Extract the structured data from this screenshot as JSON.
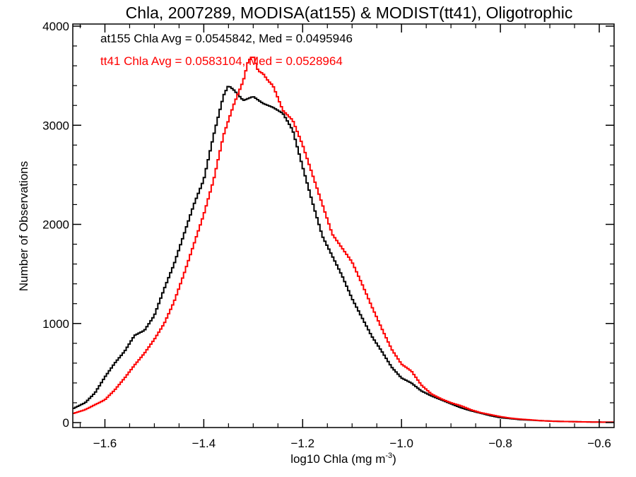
{
  "chart_data": {
    "type": "line",
    "title": "Chla, 2007289, MODISA(at155) & MODIST(tt41), Oligotrophic",
    "xlabel_main": "log10 Chla (mg m",
    "xlabel_sup": "-3",
    "xlabel_close": ")",
    "ylabel": "Number of Observations",
    "xlim": [
      -1.665,
      -0.57
    ],
    "ylim": [
      0,
      4000
    ],
    "xticks": [
      -1.6,
      -1.4,
      -1.2,
      -1.0,
      -0.8,
      -0.6
    ],
    "xtick_labels": [
      "−1.6",
      "−1.4",
      "−1.2",
      "−1.0",
      "−0.8",
      "−0.6"
    ],
    "yticks": [
      0,
      1000,
      2000,
      3000,
      4000
    ],
    "ytick_labels": [
      "0",
      "1000",
      "2000",
      "3000",
      "4000"
    ],
    "grid": false,
    "step_style": "histogram-step",
    "annotations": [
      {
        "text": "at155 Chla Avg = 0.0545842, Med = 0.0495946",
        "color": "#000000"
      },
      {
        "text": "tt41 Chla Avg = 0.0583104, Med = 0.0528964",
        "color": "#ff0000"
      }
    ],
    "series": [
      {
        "color": "#000000",
        "points": [
          [
            -1.665,
            140
          ],
          [
            -1.64,
            200
          ],
          [
            -1.62,
            300
          ],
          [
            -1.6,
            460
          ],
          [
            -1.58,
            600
          ],
          [
            -1.56,
            720
          ],
          [
            -1.54,
            880
          ],
          [
            -1.52,
            930
          ],
          [
            -1.5,
            1080
          ],
          [
            -1.48,
            1350
          ],
          [
            -1.46,
            1600
          ],
          [
            -1.44,
            1900
          ],
          [
            -1.42,
            2200
          ],
          [
            -1.4,
            2450
          ],
          [
            -1.38,
            2900
          ],
          [
            -1.36,
            3300
          ],
          [
            -1.35,
            3400
          ],
          [
            -1.34,
            3360
          ],
          [
            -1.32,
            3250
          ],
          [
            -1.3,
            3290
          ],
          [
            -1.28,
            3220
          ],
          [
            -1.26,
            3180
          ],
          [
            -1.24,
            3120
          ],
          [
            -1.22,
            2950
          ],
          [
            -1.2,
            2580
          ],
          [
            -1.18,
            2220
          ],
          [
            -1.16,
            1880
          ],
          [
            -1.14,
            1680
          ],
          [
            -1.12,
            1480
          ],
          [
            -1.1,
            1250
          ],
          [
            -1.08,
            1060
          ],
          [
            -1.06,
            870
          ],
          [
            -1.04,
            720
          ],
          [
            -1.02,
            560
          ],
          [
            -1.0,
            450
          ],
          [
            -0.98,
            400
          ],
          [
            -0.96,
            320
          ],
          [
            -0.94,
            270
          ],
          [
            -0.92,
            230
          ],
          [
            -0.9,
            190
          ],
          [
            -0.88,
            150
          ],
          [
            -0.86,
            120
          ],
          [
            -0.84,
            95
          ],
          [
            -0.82,
            70
          ],
          [
            -0.8,
            50
          ],
          [
            -0.78,
            40
          ],
          [
            -0.76,
            30
          ],
          [
            -0.74,
            25
          ],
          [
            -0.72,
            20
          ],
          [
            -0.7,
            15
          ],
          [
            -0.68,
            12
          ],
          [
            -0.66,
            10
          ],
          [
            -0.64,
            8
          ],
          [
            -0.62,
            6
          ],
          [
            -0.6,
            5
          ],
          [
            -0.57,
            4
          ]
        ]
      },
      {
        "color": "#ff0000",
        "points": [
          [
            -1.665,
            90
          ],
          [
            -1.64,
            130
          ],
          [
            -1.62,
            180
          ],
          [
            -1.6,
            230
          ],
          [
            -1.58,
            330
          ],
          [
            -1.56,
            450
          ],
          [
            -1.54,
            580
          ],
          [
            -1.52,
            700
          ],
          [
            -1.5,
            840
          ],
          [
            -1.48,
            1000
          ],
          [
            -1.46,
            1220
          ],
          [
            -1.44,
            1500
          ],
          [
            -1.42,
            1800
          ],
          [
            -1.4,
            2100
          ],
          [
            -1.38,
            2450
          ],
          [
            -1.36,
            2900
          ],
          [
            -1.34,
            3200
          ],
          [
            -1.32,
            3450
          ],
          [
            -1.31,
            3650
          ],
          [
            -1.3,
            3700
          ],
          [
            -1.29,
            3550
          ],
          [
            -1.28,
            3520
          ],
          [
            -1.27,
            3450
          ],
          [
            -1.26,
            3400
          ],
          [
            -1.24,
            3150
          ],
          [
            -1.22,
            3050
          ],
          [
            -1.2,
            2800
          ],
          [
            -1.18,
            2500
          ],
          [
            -1.16,
            2200
          ],
          [
            -1.14,
            1900
          ],
          [
            -1.12,
            1760
          ],
          [
            -1.1,
            1620
          ],
          [
            -1.08,
            1400
          ],
          [
            -1.06,
            1170
          ],
          [
            -1.04,
            950
          ],
          [
            -1.02,
            740
          ],
          [
            -1.0,
            590
          ],
          [
            -0.98,
            520
          ],
          [
            -0.96,
            380
          ],
          [
            -0.94,
            290
          ],
          [
            -0.92,
            240
          ],
          [
            -0.9,
            200
          ],
          [
            -0.88,
            170
          ],
          [
            -0.86,
            130
          ],
          [
            -0.84,
            100
          ],
          [
            -0.82,
            80
          ],
          [
            -0.8,
            60
          ],
          [
            -0.78,
            45
          ],
          [
            -0.76,
            35
          ],
          [
            -0.74,
            28
          ],
          [
            -0.72,
            20
          ],
          [
            -0.7,
            15
          ],
          [
            -0.68,
            12
          ],
          [
            -0.66,
            10
          ],
          [
            -0.64,
            8
          ],
          [
            -0.62,
            6
          ],
          [
            -0.6,
            5
          ],
          [
            -0.57,
            4
          ]
        ]
      }
    ]
  }
}
